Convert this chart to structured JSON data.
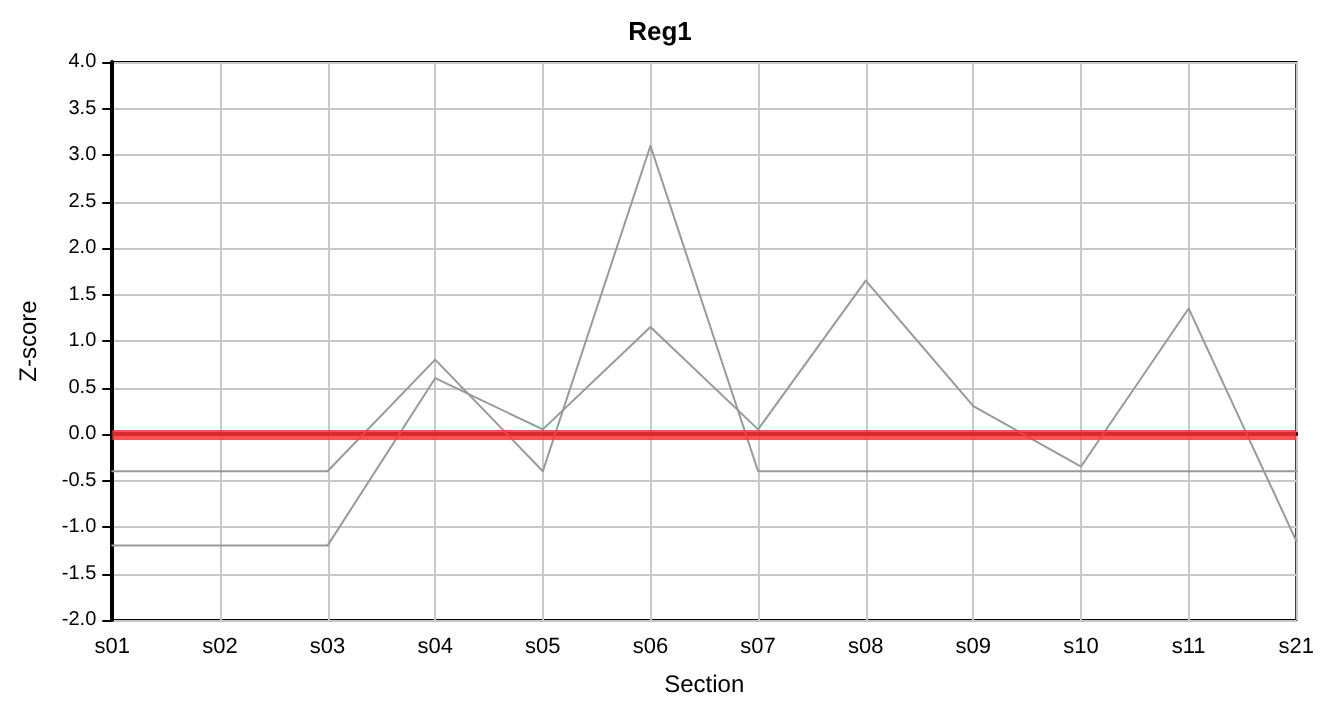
{
  "chart_data": {
    "type": "line",
    "title": "Reg1",
    "xlabel": "Section",
    "ylabel": "Z-score",
    "categories": [
      "s01",
      "s02",
      "s03",
      "s04",
      "s05",
      "s06",
      "s07",
      "s08",
      "s09",
      "s10",
      "s11",
      "s21"
    ],
    "series": [
      {
        "color": "#999999",
        "values": [
          -0.4,
          -0.4,
          -0.4,
          0.8,
          -0.4,
          3.1,
          -0.4,
          -0.4,
          -0.4,
          -0.4,
          -0.4,
          -0.4
        ]
      },
      {
        "color": "#999999",
        "values": [
          -1.2,
          -1.2,
          -1.2,
          0.6,
          0.05,
          1.15,
          0.05,
          1.65,
          0.3,
          -0.35,
          1.35,
          -1.15
        ]
      }
    ],
    "ylim": [
      -2,
      4
    ],
    "yticks": [
      {
        "value": -2,
        "label": "-2.0"
      },
      -1.5,
      {
        "value": -1,
        "label": "-1.0"
      },
      -0.5,
      {
        "value": 0,
        "label": "0.0"
      },
      0.5,
      {
        "value": 1,
        "label": "1.0"
      },
      1.5,
      {
        "value": 2,
        "label": "2.0"
      },
      2.5,
      {
        "value": 3,
        "label": "3.0"
      },
      3.5,
      {
        "value": 4,
        "label": "4.0"
      }
    ],
    "ref_lines": [
      {
        "axis": "y",
        "value": 0,
        "color": "#ff3333"
      }
    ],
    "grid": true,
    "marker": "none",
    "line_style": "solid"
  }
}
